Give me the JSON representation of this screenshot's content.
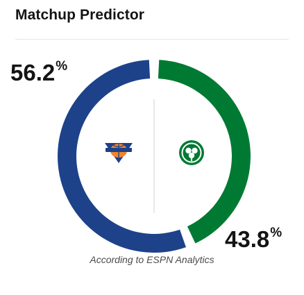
{
  "widget": {
    "title": "Matchup Predictor",
    "footer": "According to ESPN Analytics"
  },
  "teams": [
    {
      "side": "left",
      "logo_icon": "knicks-logo-icon",
      "win_probability": 56.2,
      "pct_value": "56.2",
      "pct_symbol": "%",
      "color": "#1d428a",
      "logo_colors": {
        "primary": "#f58426",
        "secondary": "#1d428a"
      }
    },
    {
      "side": "right",
      "logo_icon": "celtics-logo-icon",
      "win_probability": 43.8,
      "pct_value": "43.8",
      "pct_symbol": "%",
      "color": "#007a33",
      "logo_colors": {
        "primary": "#007a33",
        "secondary": "#ffffff"
      }
    }
  ],
  "divider_color": "#cfcfcf"
}
